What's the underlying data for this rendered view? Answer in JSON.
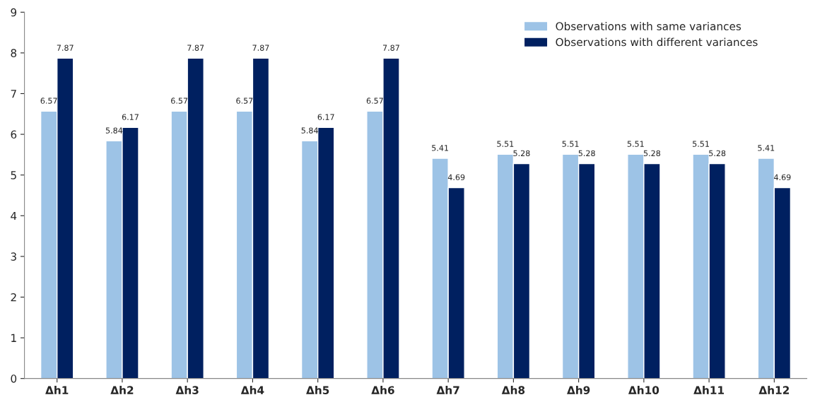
{
  "chart_data": {
    "type": "bar",
    "categories": [
      "Δh1",
      "Δh2",
      "Δh3",
      "Δh4",
      "Δh5",
      "Δh6",
      "Δh7",
      "Δh8",
      "Δh9",
      "Δh10",
      "Δh11",
      "Δh12"
    ],
    "series": [
      {
        "name": "Observations with same variances",
        "color": "#9dc3e6",
        "values": [
          6.57,
          5.84,
          6.57,
          6.57,
          5.84,
          6.57,
          5.41,
          5.51,
          5.51,
          5.51,
          5.51,
          5.41
        ]
      },
      {
        "name": "Observations with different variances",
        "color": "#002060",
        "values": [
          7.87,
          6.17,
          7.87,
          7.87,
          6.17,
          7.87,
          4.69,
          5.28,
          5.28,
          5.28,
          5.28,
          4.69
        ]
      }
    ],
    "ylim": [
      0,
      9
    ],
    "yticks": [
      0,
      1,
      2,
      3,
      4,
      5,
      6,
      7,
      8,
      9
    ],
    "data_labels": true,
    "grid": false,
    "legend": "top right"
  }
}
